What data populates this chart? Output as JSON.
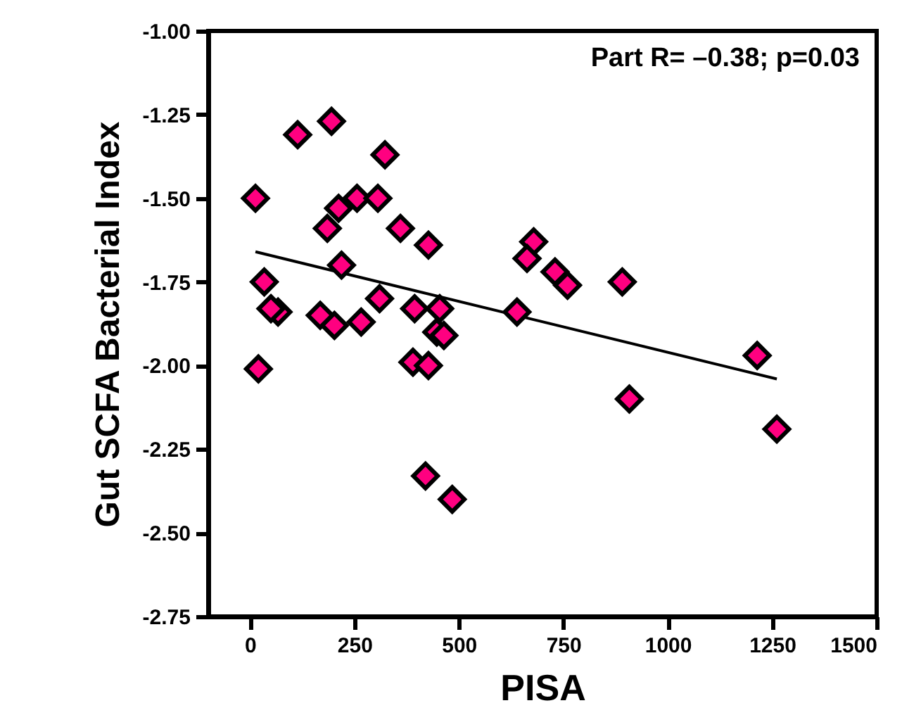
{
  "chart_data": {
    "type": "scatter",
    "xlabel": "PISA",
    "ylabel": "Gut SCFA Bacterial Index",
    "xlim": [
      -100,
      1500
    ],
    "xticks": [
      0,
      250,
      500,
      750,
      1000,
      1250,
      1500
    ],
    "ylim": [
      -2.75,
      -1
    ],
    "yticks": [
      {
        "value": -2.75,
        "label": "-2.75"
      },
      {
        "value": -2.5,
        "label": "-2.50"
      },
      {
        "value": -2.25,
        "label": "-2.25"
      },
      {
        "value": -2,
        "label": "-2.00"
      },
      {
        "value": -1.75,
        "label": "-1.75"
      },
      {
        "value": -1.5,
        "label": "-1.50"
      },
      {
        "value": -1.25,
        "label": "-1.25"
      },
      {
        "value": -1,
        "label": "-1.00"
      }
    ],
    "marker": "diamond",
    "grid": false,
    "annotations": [
      "Part R= –0.38; p=0.03"
    ],
    "series": [
      {
        "color": "#ff0080",
        "x": [
          13,
          114,
          195,
          323,
          212,
          256,
          306,
          185,
          360,
          427,
          219,
          34,
          67,
          50,
          168,
          202,
          266,
          310,
          394,
          454,
          447,
          464,
          390,
          427,
          20,
          420,
          484,
          679,
          663,
          730,
          760,
          891,
          639,
          1214,
          908,
          1261
        ],
        "values": [
          -1.5,
          -1.31,
          -1.27,
          -1.37,
          -1.53,
          -1.5,
          -1.5,
          -1.59,
          -1.59,
          -1.64,
          -1.7,
          -1.75,
          -1.84,
          -1.83,
          -1.85,
          -1.88,
          -1.87,
          -1.8,
          -1.83,
          -1.83,
          -1.9,
          -1.91,
          -1.99,
          -2.0,
          -2.01,
          -2.33,
          -2.4,
          -1.63,
          -1.68,
          -1.72,
          -1.76,
          -1.75,
          -1.84,
          -1.97,
          -2.1,
          -2.19
        ]
      },
      {
        "type": "line",
        "marker": "none",
        "color": "#000000",
        "x": [
          13,
          1261
        ],
        "values": [
          -1.66,
          -2.04
        ]
      }
    ]
  }
}
